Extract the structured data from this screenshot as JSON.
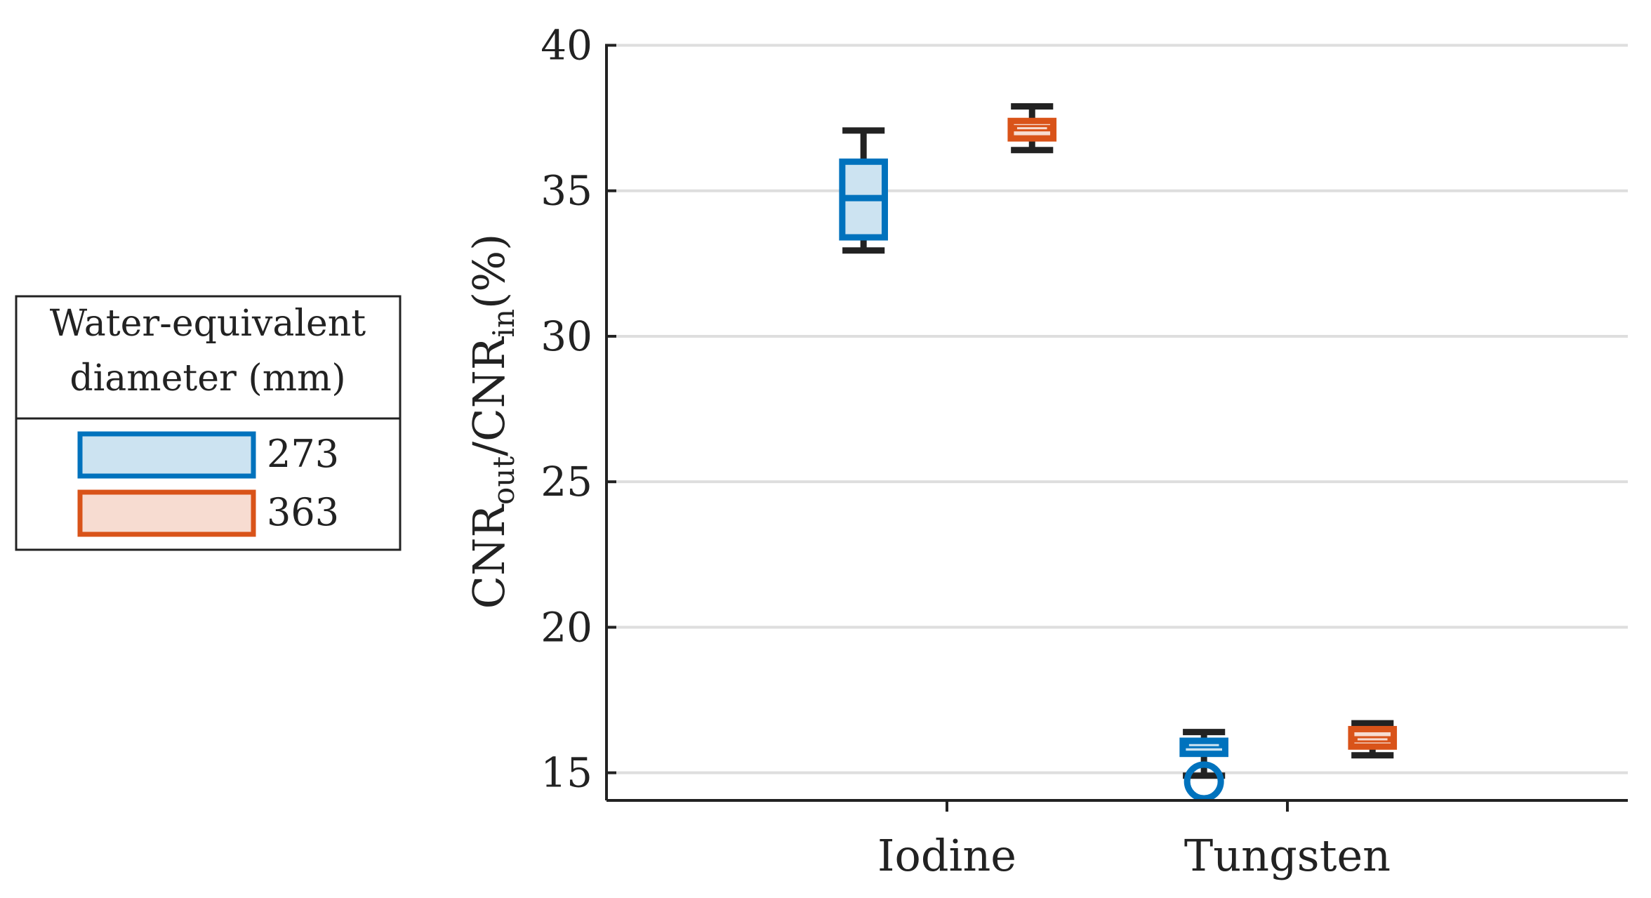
{
  "chart_data": {
    "type": "box",
    "title": "",
    "xlabel": "",
    "ylabel": {
      "main": "CNR",
      "sub1": "out",
      "sep": "/",
      "main2": "CNR",
      "sub2": "in",
      "unit": "(%)"
    },
    "categories": [
      "Iodine",
      "Tungsten"
    ],
    "ylim": [
      14.05,
      40
    ],
    "yticks": [
      15,
      20,
      25,
      30,
      35,
      40
    ],
    "grid": "horizontal",
    "legend": {
      "position": "left",
      "title_lines": [
        "Water-equivalent",
        "diameter (mm)"
      ]
    },
    "series": [
      {
        "name": "273",
        "edge_color": "#0072BD",
        "fill_color": "#CCE3F1",
        "boxes": [
          {
            "category": "Iodine",
            "whisker_low": 32.95,
            "q1": 33.4,
            "median": 34.75,
            "q3": 36.0,
            "whisker_high": 37.07,
            "outliers": []
          },
          {
            "category": "Tungsten",
            "whisker_low": 14.9,
            "q1": 15.65,
            "median": 15.95,
            "q3": 16.1,
            "whisker_high": 16.4,
            "outliers": [
              14.7
            ]
          }
        ]
      },
      {
        "name": "363",
        "edge_color": "#D95319",
        "fill_color": "#F7DCD1",
        "boxes": [
          {
            "category": "Iodine",
            "whisker_low": 36.4,
            "q1": 36.8,
            "median": 37.15,
            "q3": 37.4,
            "whisker_high": 37.9,
            "outliers": []
          },
          {
            "category": "Tungsten",
            "whisker_low": 15.6,
            "q1": 15.9,
            "median": 16.15,
            "q3": 16.5,
            "whisker_high": 16.7,
            "outliers": []
          }
        ]
      }
    ]
  }
}
